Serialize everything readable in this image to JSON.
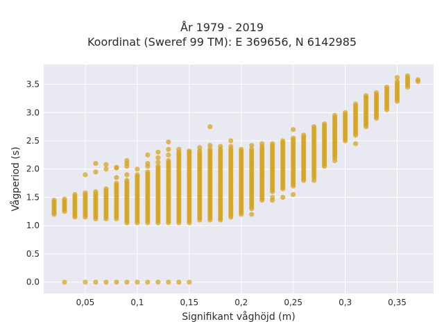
{
  "chart_data": {
    "type": "scatter",
    "title": "År 1979 - 2019",
    "subtitle": "Koordinat (Sweref 99 TM): E 369656, N 6142985",
    "xlabel": "Signifikant våghöjd (m)",
    "ylabel": "Vågperiod (s)",
    "xlim": [
      0.01,
      0.385
    ],
    "ylim": [
      -0.2,
      3.85
    ],
    "xticks": [
      0.05,
      0.1,
      0.15,
      0.2,
      0.25,
      0.3,
      0.35
    ],
    "xtick_labels": [
      "0,05",
      "0,1",
      "0,15",
      "0,2",
      "0,25",
      "0,3",
      "0,35"
    ],
    "yticks": [
      0,
      0.5,
      1,
      1.5,
      2,
      2.5,
      3,
      3.5
    ],
    "ytick_labels": [
      "0.0",
      "0.5",
      "1.0",
      "1.5",
      "2.0",
      "2.5",
      "3.0",
      "3.5"
    ],
    "grid": true,
    "background": "#e9e9f1",
    "point_color": "#d4a21a",
    "columns": [
      {
        "x": 0.02,
        "ymin": 1.2,
        "ymax": 1.45,
        "extra": []
      },
      {
        "x": 0.03,
        "ymin": 1.25,
        "ymax": 1.47,
        "extra": [
          0.0
        ]
      },
      {
        "x": 0.04,
        "ymin": 1.15,
        "ymax": 1.55,
        "extra": []
      },
      {
        "x": 0.05,
        "ymin": 1.15,
        "ymax": 1.58,
        "extra": [
          0.0,
          1.9
        ]
      },
      {
        "x": 0.06,
        "ymin": 1.12,
        "ymax": 1.6,
        "extra": [
          0.0,
          1.95,
          2.1
        ]
      },
      {
        "x": 0.07,
        "ymin": 1.12,
        "ymax": 1.65,
        "extra": [
          0.0,
          2.0,
          2.08
        ]
      },
      {
        "x": 0.08,
        "ymin": 1.12,
        "ymax": 1.75,
        "extra": [
          0.0,
          1.85,
          2.02,
          2.03
        ]
      },
      {
        "x": 0.09,
        "ymin": 1.05,
        "ymax": 1.8,
        "extra": [
          0.0,
          1.9,
          2.05,
          2.1,
          2.15
        ]
      },
      {
        "x": 0.1,
        "ymin": 1.05,
        "ymax": 1.9,
        "extra": [
          0.0,
          2.0
        ]
      },
      {
        "x": 0.11,
        "ymin": 1.05,
        "ymax": 1.95,
        "extra": [
          0.0,
          2.05,
          2.1,
          2.25
        ]
      },
      {
        "x": 0.12,
        "ymin": 1.05,
        "ymax": 2.05,
        "extra": [
          0.0,
          2.12,
          2.2,
          2.3
        ]
      },
      {
        "x": 0.13,
        "ymin": 1.05,
        "ymax": 2.15,
        "extra": [
          0.0,
          2.25,
          2.35,
          2.48
        ]
      },
      {
        "x": 0.14,
        "ymin": 1.05,
        "ymax": 2.3,
        "extra": [
          0.0,
          2.35
        ]
      },
      {
        "x": 0.15,
        "ymin": 1.05,
        "ymax": 2.3,
        "extra": [
          0.0,
          2.32
        ]
      },
      {
        "x": 0.16,
        "ymin": 1.1,
        "ymax": 2.32,
        "extra": [
          2.38
        ]
      },
      {
        "x": 0.17,
        "ymin": 1.1,
        "ymax": 2.35,
        "extra": [
          2.42,
          2.75
        ]
      },
      {
        "x": 0.18,
        "ymin": 1.1,
        "ymax": 2.35,
        "extra": [
          2.4
        ]
      },
      {
        "x": 0.19,
        "ymin": 1.15,
        "ymax": 2.35,
        "extra": [
          2.4,
          2.5
        ]
      },
      {
        "x": 0.2,
        "ymin": 1.2,
        "ymax": 2.35,
        "extra": []
      },
      {
        "x": 0.21,
        "ymin": 1.3,
        "ymax": 2.35,
        "extra": [
          1.2,
          2.42
        ]
      },
      {
        "x": 0.22,
        "ymin": 1.45,
        "ymax": 2.4,
        "extra": [
          2.45
        ]
      },
      {
        "x": 0.23,
        "ymin": 1.6,
        "ymax": 2.45,
        "extra": [
          1.45,
          1.5
        ]
      },
      {
        "x": 0.24,
        "ymin": 1.65,
        "ymax": 2.5,
        "extra": [
          1.5
        ]
      },
      {
        "x": 0.25,
        "ymin": 1.7,
        "ymax": 2.55,
        "extra": [
          1.55,
          2.7
        ]
      },
      {
        "x": 0.26,
        "ymin": 1.8,
        "ymax": 2.6,
        "extra": []
      },
      {
        "x": 0.27,
        "ymin": 1.85,
        "ymax": 2.75,
        "extra": [
          1.8
        ]
      },
      {
        "x": 0.28,
        "ymin": 2.05,
        "ymax": 2.8,
        "extra": []
      },
      {
        "x": 0.29,
        "ymin": 2.2,
        "ymax": 2.95,
        "extra": [
          2.15
        ]
      },
      {
        "x": 0.3,
        "ymin": 2.5,
        "ymax": 3.0,
        "extra": []
      },
      {
        "x": 0.31,
        "ymin": 2.6,
        "ymax": 3.15,
        "extra": [
          2.45
        ]
      },
      {
        "x": 0.32,
        "ymin": 2.75,
        "ymax": 3.3,
        "extra": []
      },
      {
        "x": 0.33,
        "ymin": 2.9,
        "ymax": 3.35,
        "extra": []
      },
      {
        "x": 0.34,
        "ymin": 3.05,
        "ymax": 3.45,
        "extra": []
      },
      {
        "x": 0.35,
        "ymin": 3.2,
        "ymax": 3.55,
        "extra": [
          3.62
        ]
      },
      {
        "x": 0.36,
        "ymin": 3.45,
        "ymax": 3.65,
        "extra": []
      },
      {
        "x": 0.37,
        "ymin": 3.55,
        "ymax": 3.58,
        "extra": []
      }
    ]
  }
}
